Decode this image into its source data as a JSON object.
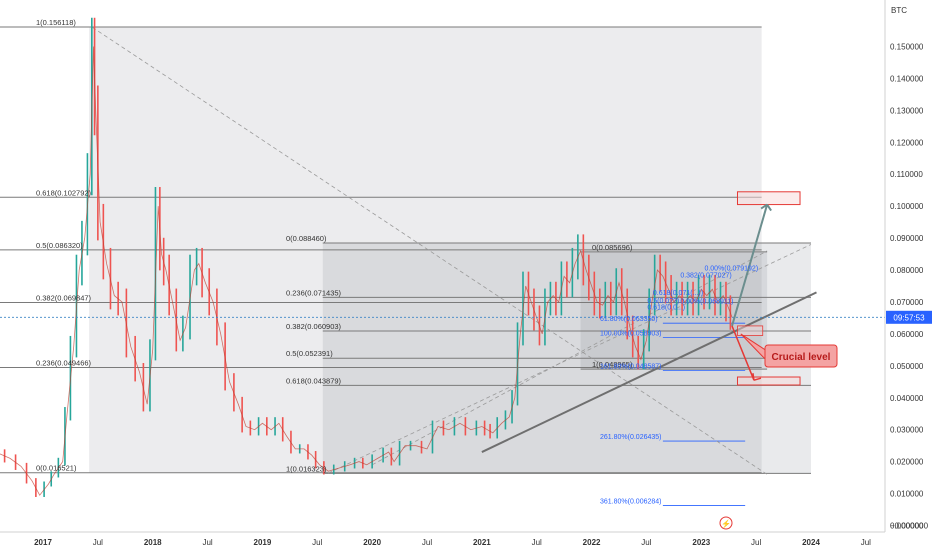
{
  "chart_data": {
    "type": "line",
    "title": "",
    "currency": "BTC",
    "ylim": [
      0.0,
      0.162
    ],
    "y_ticks": [
      "0.150000",
      "0.140000",
      "0.130000",
      "0.120000",
      "0.110000",
      "0.100000",
      "0.090000",
      "0.080000",
      "0.070000",
      "0.060000",
      "0.050000",
      "0.040000",
      "0.030000",
      "0.020000",
      "0.010000",
      "0.000000"
    ],
    "y_tick_bottom": "−0.000000",
    "y_tick_values": [
      0.15,
      0.14,
      0.13,
      0.12,
      0.11,
      0.1,
      0.09,
      0.08,
      0.07,
      0.06,
      0.05,
      0.04,
      0.03,
      0.02,
      0.01,
      0.0
    ],
    "x_ticks": [
      {
        "label": "2017",
        "t": 2017.0,
        "bold": true
      },
      {
        "label": "Jul",
        "t": 2017.5,
        "bold": false
      },
      {
        "label": "2018",
        "t": 2018.0,
        "bold": true
      },
      {
        "label": "Jul",
        "t": 2018.5,
        "bold": false
      },
      {
        "label": "2019",
        "t": 2019.0,
        "bold": true
      },
      {
        "label": "Jul",
        "t": 2019.5,
        "bold": false
      },
      {
        "label": "2020",
        "t": 2020.0,
        "bold": true
      },
      {
        "label": "Jul",
        "t": 2020.5,
        "bold": false
      },
      {
        "label": "2021",
        "t": 2021.0,
        "bold": true
      },
      {
        "label": "Jul",
        "t": 2021.5,
        "bold": false
      },
      {
        "label": "2022",
        "t": 2022.0,
        "bold": true
      },
      {
        "label": "Jul",
        "t": 2022.5,
        "bold": false
      },
      {
        "label": "2023",
        "t": 2023.0,
        "bold": true
      },
      {
        "label": "Jul",
        "t": 2023.5,
        "bold": false
      },
      {
        "label": "2024",
        "t": 2024.0,
        "bold": true
      },
      {
        "label": "Jul",
        "t": 2024.5,
        "bold": false
      }
    ],
    "current_price": {
      "value": 0.0652,
      "label": "09:57:53"
    },
    "series": [
      {
        "values": [
          [
            2016.6,
            0.0225
          ],
          [
            2016.7,
            0.021
          ],
          [
            2016.8,
            0.0185
          ],
          [
            2016.9,
            0.014
          ],
          [
            2016.97,
            0.0095
          ],
          [
            2017.05,
            0.013
          ],
          [
            2017.1,
            0.016
          ],
          [
            2017.18,
            0.02
          ],
          [
            2017.22,
            0.035
          ],
          [
            2017.28,
            0.056
          ],
          [
            2017.33,
            0.08
          ],
          [
            2017.38,
            0.09
          ],
          [
            2017.43,
            0.11
          ],
          [
            2017.46,
            0.15
          ],
          [
            2017.48,
            0.13
          ],
          [
            2017.52,
            0.095
          ],
          [
            2017.58,
            0.082
          ],
          [
            2017.65,
            0.072
          ],
          [
            2017.72,
            0.07
          ],
          [
            2017.8,
            0.056
          ],
          [
            2017.88,
            0.048
          ],
          [
            2017.95,
            0.038
          ],
          [
            2018.0,
            0.055
          ],
          [
            2018.05,
            0.1
          ],
          [
            2018.08,
            0.085
          ],
          [
            2018.12,
            0.08
          ],
          [
            2018.18,
            0.07
          ],
          [
            2018.25,
            0.058
          ],
          [
            2018.3,
            0.062
          ],
          [
            2018.38,
            0.08
          ],
          [
            2018.42,
            0.082
          ],
          [
            2018.48,
            0.076
          ],
          [
            2018.55,
            0.07
          ],
          [
            2018.62,
            0.06
          ],
          [
            2018.7,
            0.045
          ],
          [
            2018.78,
            0.038
          ],
          [
            2018.85,
            0.031
          ],
          [
            2018.93,
            0.03
          ],
          [
            2019.0,
            0.032
          ],
          [
            2019.08,
            0.03
          ],
          [
            2019.15,
            0.032
          ],
          [
            2019.22,
            0.028
          ],
          [
            2019.3,
            0.024
          ],
          [
            2019.38,
            0.024
          ],
          [
            2019.45,
            0.022
          ],
          [
            2019.52,
            0.019
          ],
          [
            2019.6,
            0.017
          ],
          [
            2019.7,
            0.018
          ],
          [
            2019.8,
            0.019
          ],
          [
            2019.88,
            0.02
          ],
          [
            2019.95,
            0.019
          ],
          [
            2020.05,
            0.021
          ],
          [
            2020.15,
            0.023
          ],
          [
            2020.2,
            0.02
          ],
          [
            2020.3,
            0.025
          ],
          [
            2020.4,
            0.025
          ],
          [
            2020.5,
            0.024
          ],
          [
            2020.6,
            0.031
          ],
          [
            2020.7,
            0.03
          ],
          [
            2020.8,
            0.032
          ],
          [
            2020.9,
            0.03
          ],
          [
            2021.0,
            0.031
          ],
          [
            2021.05,
            0.03
          ],
          [
            2021.1,
            0.029
          ],
          [
            2021.18,
            0.032
          ],
          [
            2021.25,
            0.034
          ],
          [
            2021.3,
            0.04
          ],
          [
            2021.35,
            0.06
          ],
          [
            2021.4,
            0.075
          ],
          [
            2021.45,
            0.07
          ],
          [
            2021.5,
            0.065
          ],
          [
            2021.55,
            0.06
          ],
          [
            2021.6,
            0.07
          ],
          [
            2021.65,
            0.072
          ],
          [
            2021.7,
            0.07
          ],
          [
            2021.75,
            0.078
          ],
          [
            2021.8,
            0.076
          ],
          [
            2021.85,
            0.082
          ],
          [
            2021.9,
            0.086
          ],
          [
            2021.95,
            0.08
          ],
          [
            2022.0,
            0.075
          ],
          [
            2022.05,
            0.07
          ],
          [
            2022.1,
            0.069
          ],
          [
            2022.15,
            0.072
          ],
          [
            2022.2,
            0.07
          ],
          [
            2022.25,
            0.076
          ],
          [
            2022.3,
            0.07
          ],
          [
            2022.35,
            0.062
          ],
          [
            2022.4,
            0.056
          ],
          [
            2022.45,
            0.052
          ],
          [
            2022.5,
            0.058
          ],
          [
            2022.55,
            0.07
          ],
          [
            2022.6,
            0.08
          ],
          [
            2022.65,
            0.078
          ],
          [
            2022.7,
            0.074
          ],
          [
            2022.75,
            0.07
          ],
          [
            2022.8,
            0.072
          ],
          [
            2022.85,
            0.07
          ],
          [
            2022.9,
            0.072
          ],
          [
            2022.95,
            0.07
          ],
          [
            2023.0,
            0.074
          ],
          [
            2023.05,
            0.072
          ],
          [
            2023.1,
            0.074
          ],
          [
            2023.15,
            0.07
          ],
          [
            2023.2,
            0.072
          ],
          [
            2023.25,
            0.068
          ],
          [
            2023.28,
            0.0652
          ]
        ]
      }
    ],
    "fib_outer": [
      {
        "label": "1(0.156118)",
        "value": 0.156118
      },
      {
        "label": "0.618(0.102792)",
        "value": 0.102792
      },
      {
        "label": "0.5(0.086320)",
        "value": 0.08632
      },
      {
        "label": "0.382(0.069847)",
        "value": 0.069847
      },
      {
        "label": "0.236(0.049466)",
        "value": 0.049466
      },
      {
        "label": "0(0.016521)",
        "value": 0.016521
      }
    ],
    "fib_mid": [
      {
        "label": "0(0.088460)",
        "value": 0.08846
      },
      {
        "label": "0.236(0.071435)",
        "value": 0.071435
      },
      {
        "label": "0.382(0.060903)",
        "value": 0.060903
      },
      {
        "label": "0.5(0.052391)",
        "value": 0.052391
      },
      {
        "label": "0.618(0.043879)",
        "value": 0.043879
      },
      {
        "label": "1(0.016323)",
        "value": 0.016323
      }
    ],
    "fib_inner": [
      {
        "label": "0(0.085696)",
        "value": 0.085696
      },
      {
        "label": "1(0.048965)",
        "value": 0.048965
      }
    ],
    "fib_ext": [
      {
        "label": "0.00%(0.079192)",
        "value": 0.079192,
        "t": 2023.12
      },
      {
        "label": "0.382(0.077027)",
        "value": 0.077027,
        "t": 2022.9
      },
      {
        "label": "0.618(0.071(...))",
        "value": 0.0715,
        "t": 2022.65
      },
      {
        "label": "0.5(0.0??)",
        "value": 0.069,
        "t": 2022.6
      },
      {
        "label": "0.00%(0.068911)",
        "value": 0.068911,
        "t": 2022.9
      },
      {
        "label": "0.618(0.0...)",
        "value": 0.067,
        "t": 2022.6
      },
      {
        "label": "61.80%(0.063350)",
        "value": 0.06335,
        "t": 2022.82
      },
      {
        "label": "100.00%(0.058903)",
        "value": 0.058903,
        "t": 2022.82
      },
      {
        "label": "161.80%(0.048587)",
        "value": 0.048587,
        "t": 2022.82
      },
      {
        "label": "261.80%(0.026435)",
        "value": 0.026435,
        "t": 2022.82
      },
      {
        "label": "361.80%(0.006284)",
        "value": 0.006284,
        "t": 2022.82
      }
    ],
    "annotation": "Crucial level"
  }
}
